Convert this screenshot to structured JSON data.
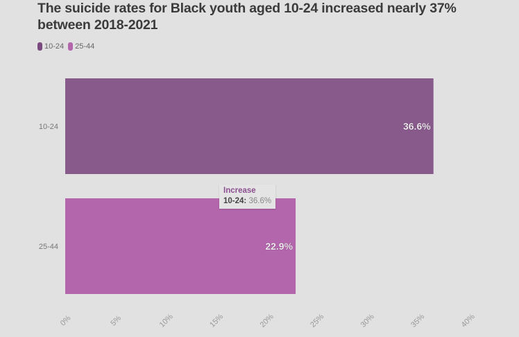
{
  "chart_data": {
    "type": "bar",
    "orientation": "horizontal",
    "title": "The suicide rates for Black youth aged 10-24 increased nearly 37% between 2018-2021",
    "categories": [
      "10-24",
      "25-44"
    ],
    "values": [
      36.6,
      22.9
    ],
    "value_labels": [
      "36.6%",
      "22.9%"
    ],
    "colors": [
      "#875a8b",
      "#b366ab"
    ],
    "legend": [
      {
        "label": "10-24",
        "color": "#7a4a80"
      },
      {
        "label": "25-44",
        "color": "#b366ab"
      }
    ],
    "legend_position": "top-left",
    "xlabel": "",
    "ylabel": "",
    "xlim": [
      0,
      40
    ],
    "x_ticks": [
      0,
      5,
      10,
      15,
      20,
      25,
      30,
      35,
      40
    ],
    "x_tick_labels": [
      "0%",
      "5%",
      "10%",
      "15%",
      "20%",
      "25%",
      "30%",
      "35%",
      "40%"
    ],
    "grid": false
  },
  "tooltip": {
    "title": "Increase",
    "key": "10-24:",
    "value": "36.6%"
  }
}
